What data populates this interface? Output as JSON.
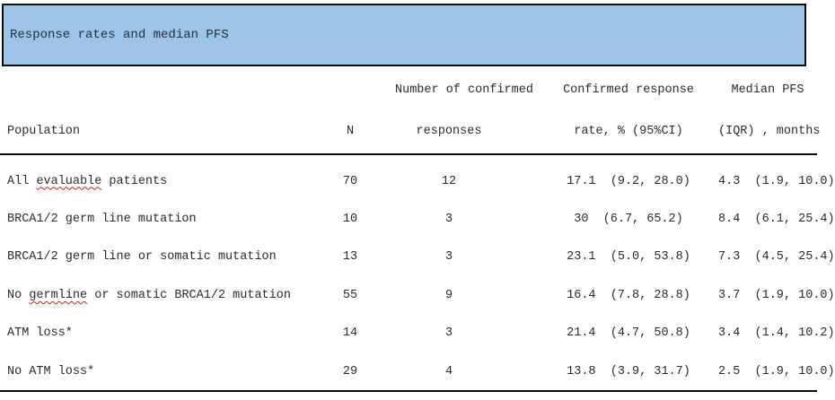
{
  "banner": {
    "title": "Response rates and median PFS",
    "background_color": "#9dc3e6",
    "border_color": "#0d0d0d"
  },
  "table": {
    "header": {
      "population": "Population",
      "n": "N",
      "responses_line1": "Number of confirmed",
      "responses_line2": "responses",
      "rate_line1": "Confirmed response",
      "rate_line2": "rate, % (95%CI)",
      "pfs_line1": "Median PFS",
      "pfs_line2": "(IQR) , months"
    },
    "rows": [
      {
        "pop_pre": "All ",
        "pop_mark": "evaluable",
        "pop_post": " patients",
        "n": "70",
        "responses": "12",
        "rate": "17.1  (9.2, 28.0)",
        "pfs": "4.3  (1.9, 10.0)"
      },
      {
        "pop_pre": "BRCA1/2 germ line mutation",
        "pop_mark": "",
        "pop_post": "",
        "n": "10",
        "responses": "3",
        "rate": "30  (6.7, 65.2)",
        "pfs": "8.4  (6.1, 25.4)"
      },
      {
        "pop_pre": "BRCA1/2 germ line or somatic mutation",
        "pop_mark": "",
        "pop_post": "",
        "n": "13",
        "responses": "3",
        "rate": "23.1  (5.0, 53.8)",
        "pfs": "7.3  (4.5, 25.4)"
      },
      {
        "pop_pre": "No ",
        "pop_mark": "germline",
        "pop_post": " or somatic BRCA1/2 mutation",
        "n": "55",
        "responses": "9",
        "rate": "16.4  (7.8, 28.8)",
        "pfs": "3.7  (1.9, 10.0)"
      },
      {
        "pop_pre": "ATM loss*",
        "pop_mark": "",
        "pop_post": "",
        "n": "14",
        "responses": "3",
        "rate": "21.4  (4.7, 50.8)",
        "pfs": "3.4  (1.4, 10.2)"
      },
      {
        "pop_pre": "No ATM loss*",
        "pop_mark": "",
        "pop_post": "",
        "n": "29",
        "responses": "4",
        "rate": "13.8  (3.9, 31.7)",
        "pfs": "2.5  (1.9, 10.0)"
      }
    ]
  }
}
